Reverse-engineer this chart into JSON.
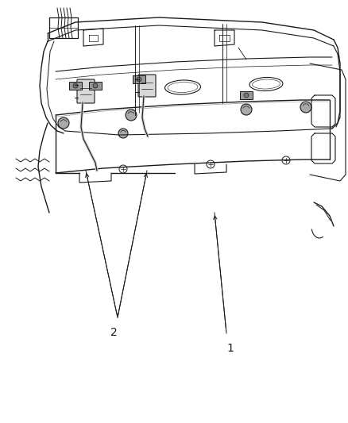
{
  "background_color": "#ffffff",
  "line_color": "#1a1a1a",
  "gray_color": "#555555",
  "light_gray": "#888888",
  "label_1": "1",
  "label_2": "2",
  "figsize": [
    4.38,
    5.33
  ],
  "dpi": 100,
  "xlim": [
    0,
    438
  ],
  "ylim": [
    0,
    533
  ]
}
